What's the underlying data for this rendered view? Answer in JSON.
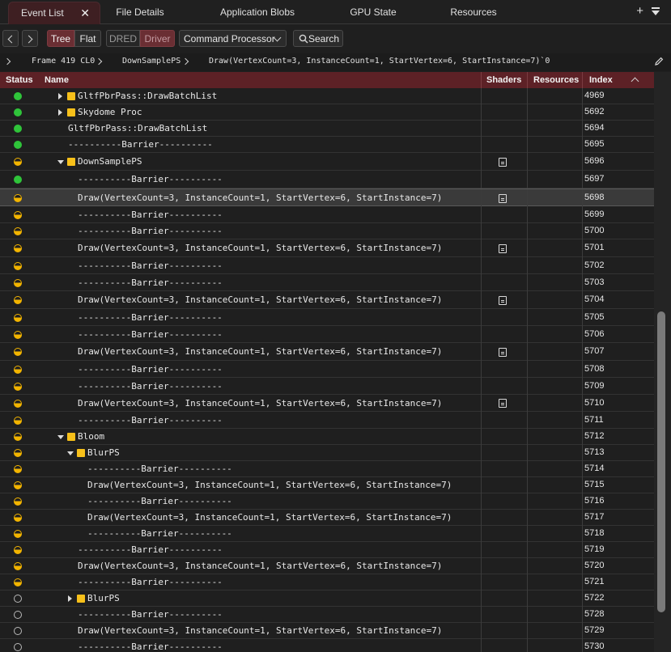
{
  "tabs": [
    {
      "label": "Event List",
      "active": true
    },
    {
      "label": "File Details"
    },
    {
      "label": "Application Blobs"
    },
    {
      "label": "GPU State"
    },
    {
      "label": "Resources"
    }
  ],
  "tab_close": "✕",
  "tab_add": "+",
  "toolbar": {
    "tree": "Tree",
    "flat": "Flat",
    "dred": "DRED",
    "driver": "Driver",
    "processor": "Command Processor",
    "search": "Search"
  },
  "breadcrumb": [
    "Frame 419 CL0",
    "DownSamplePS",
    "Draw(VertexCount=3, InstanceCount=1, StartVertex=6, StartInstance=7)`0"
  ],
  "columns": {
    "status": "Status",
    "name": "Name",
    "shaders": "Shaders",
    "resources": "Resources",
    "index": "Index"
  },
  "colors": {
    "accent": "#5d2126",
    "green": "#2fc43a",
    "yellow": "#f2b400"
  },
  "rows": [
    {
      "status": "green",
      "indent": 0,
      "expander": "collapsed",
      "marker": true,
      "name": "GltfPbrPass::DrawBatchList",
      "index": "4969"
    },
    {
      "status": "green",
      "indent": 0,
      "expander": "collapsed",
      "marker": true,
      "name": "Skydome Proc",
      "index": "5692"
    },
    {
      "status": "green",
      "indent": 1,
      "name": "GltfPbrPass::DrawBatchList",
      "index": "5694"
    },
    {
      "status": "green",
      "indent": 1,
      "name": "----------Barrier----------",
      "index": "5695"
    },
    {
      "status": "half",
      "indent": 0,
      "expander": "expanded",
      "marker": true,
      "name": "DownSamplePS",
      "index": "5696",
      "shader": true
    },
    {
      "status": "green",
      "indent": 2,
      "name": "----------Barrier----------",
      "index": "5697"
    },
    {
      "status": "half",
      "indent": 2,
      "name": "Draw(VertexCount=3, InstanceCount=1, StartVertex=6, StartInstance=7)",
      "index": "5698",
      "shader": true,
      "selected": true
    },
    {
      "status": "half",
      "indent": 2,
      "name": "----------Barrier----------",
      "index": "5699"
    },
    {
      "status": "half",
      "indent": 2,
      "name": "----------Barrier----------",
      "index": "5700"
    },
    {
      "status": "half",
      "indent": 2,
      "name": "Draw(VertexCount=3, InstanceCount=1, StartVertex=6, StartInstance=7)",
      "index": "5701",
      "shader": true
    },
    {
      "status": "half",
      "indent": 2,
      "name": "----------Barrier----------",
      "index": "5702"
    },
    {
      "status": "half",
      "indent": 2,
      "name": "----------Barrier----------",
      "index": "5703"
    },
    {
      "status": "half",
      "indent": 2,
      "name": "Draw(VertexCount=3, InstanceCount=1, StartVertex=6, StartInstance=7)",
      "index": "5704",
      "shader": true
    },
    {
      "status": "half",
      "indent": 2,
      "name": "----------Barrier----------",
      "index": "5705"
    },
    {
      "status": "half",
      "indent": 2,
      "name": "----------Barrier----------",
      "index": "5706"
    },
    {
      "status": "half",
      "indent": 2,
      "name": "Draw(VertexCount=3, InstanceCount=1, StartVertex=6, StartInstance=7)",
      "index": "5707",
      "shader": true
    },
    {
      "status": "half",
      "indent": 2,
      "name": "----------Barrier----------",
      "index": "5708"
    },
    {
      "status": "half",
      "indent": 2,
      "name": "----------Barrier----------",
      "index": "5709"
    },
    {
      "status": "half",
      "indent": 2,
      "name": "Draw(VertexCount=3, InstanceCount=1, StartVertex=6, StartInstance=7)",
      "index": "5710",
      "shader": true
    },
    {
      "status": "half",
      "indent": 2,
      "name": "----------Barrier----------",
      "index": "5711"
    },
    {
      "status": "half",
      "indent": 0,
      "expander": "expanded",
      "marker": true,
      "name": "Bloom",
      "index": "5712"
    },
    {
      "status": "half",
      "indent": 1,
      "expander": "expanded",
      "marker": true,
      "name": "BlurPS",
      "index": "5713"
    },
    {
      "status": "half",
      "indent": 3,
      "name": "----------Barrier----------",
      "index": "5714"
    },
    {
      "status": "half",
      "indent": 3,
      "name": "Draw(VertexCount=3, InstanceCount=1, StartVertex=6, StartInstance=7)",
      "index": "5715"
    },
    {
      "status": "half",
      "indent": 3,
      "name": "----------Barrier----------",
      "index": "5716"
    },
    {
      "status": "half",
      "indent": 3,
      "name": "Draw(VertexCount=3, InstanceCount=1, StartVertex=6, StartInstance=7)",
      "index": "5717"
    },
    {
      "status": "half",
      "indent": 3,
      "name": "----------Barrier----------",
      "index": "5718"
    },
    {
      "status": "half",
      "indent": 2,
      "name": "----------Barrier----------",
      "index": "5719"
    },
    {
      "status": "half",
      "indent": 2,
      "name": "Draw(VertexCount=3, InstanceCount=1, StartVertex=6, StartInstance=7)",
      "index": "5720"
    },
    {
      "status": "half",
      "indent": 2,
      "name": "----------Barrier----------",
      "index": "5721"
    },
    {
      "status": "empty",
      "indent": 1,
      "expander": "collapsed",
      "marker": true,
      "name": "BlurPS",
      "index": "5722"
    },
    {
      "status": "empty",
      "indent": 2,
      "name": "----------Barrier----------",
      "index": "5728"
    },
    {
      "status": "empty",
      "indent": 2,
      "name": "Draw(VertexCount=3, InstanceCount=1, StartVertex=6, StartInstance=7)",
      "index": "5729"
    },
    {
      "status": "empty",
      "indent": 2,
      "name": "----------Barrier----------",
      "index": "5730"
    }
  ]
}
